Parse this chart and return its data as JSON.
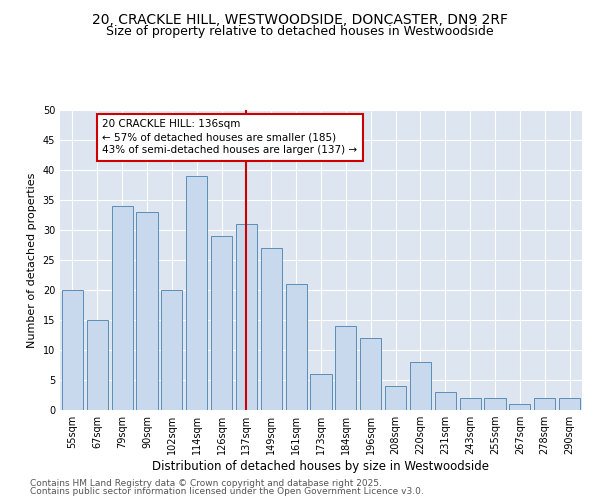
{
  "title1": "20, CRACKLE HILL, WESTWOODSIDE, DONCASTER, DN9 2RF",
  "title2": "Size of property relative to detached houses in Westwoodside",
  "xlabel": "Distribution of detached houses by size in Westwoodside",
  "ylabel": "Number of detached properties",
  "categories": [
    "55sqm",
    "67sqm",
    "79sqm",
    "90sqm",
    "102sqm",
    "114sqm",
    "126sqm",
    "137sqm",
    "149sqm",
    "161sqm",
    "173sqm",
    "184sqm",
    "196sqm",
    "208sqm",
    "220sqm",
    "231sqm",
    "243sqm",
    "255sqm",
    "267sqm",
    "278sqm",
    "290sqm"
  ],
  "values": [
    20,
    15,
    34,
    33,
    20,
    39,
    29,
    31,
    27,
    21,
    6,
    14,
    12,
    4,
    8,
    3,
    2,
    2,
    1,
    2,
    2
  ],
  "bar_color": "#c9d9ed",
  "bar_edge_color": "#5b8db8",
  "highlight_index": 7,
  "highlight_line_color": "#cc0000",
  "annotation_text": "20 CRACKLE HILL: 136sqm\n← 57% of detached houses are smaller (185)\n43% of semi-detached houses are larger (137) →",
  "annotation_box_color": "#ffffff",
  "annotation_box_edge": "#cc0000",
  "ylim": [
    0,
    50
  ],
  "yticks": [
    0,
    5,
    10,
    15,
    20,
    25,
    30,
    35,
    40,
    45,
    50
  ],
  "background_color": "#dde6f0",
  "footer1": "Contains HM Land Registry data © Crown copyright and database right 2025.",
  "footer2": "Contains public sector information licensed under the Open Government Licence v3.0.",
  "title1_fontsize": 10,
  "title2_fontsize": 9,
  "xlabel_fontsize": 8.5,
  "ylabel_fontsize": 8,
  "tick_fontsize": 7,
  "annotation_fontsize": 7.5,
  "footer_fontsize": 6.5
}
